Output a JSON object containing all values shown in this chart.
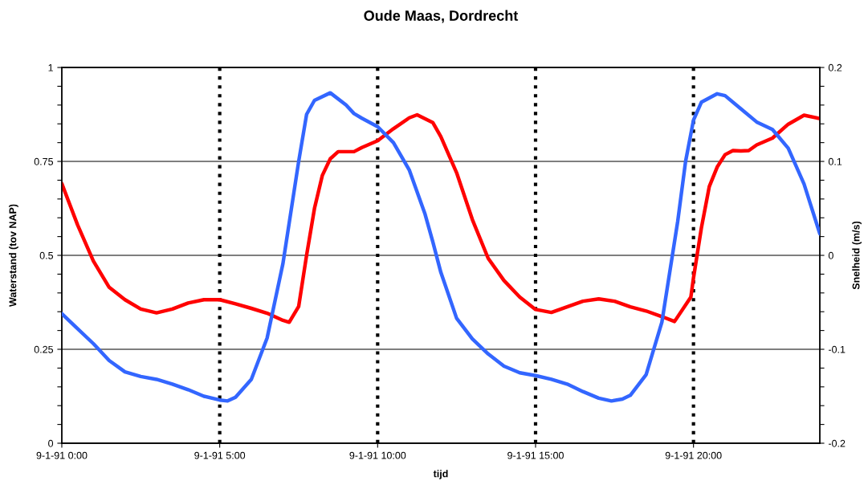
{
  "chart_data": {
    "type": "line",
    "title": "Oude Maas, Dordrecht",
    "xlabel": "tijd",
    "ylabel": "Waterstand (tov NAP)",
    "y2label": "Snelheid (m/s)",
    "xlim": [
      "1991-01-09T00:00",
      "1991-01-10T00:00"
    ],
    "xticks": [
      {
        "value": "1991-01-09T00:00",
        "label": "9-1-91 0:00"
      },
      {
        "value": "1991-01-09T05:00",
        "label": "9-1-91 5:00"
      },
      {
        "value": "1991-01-09T10:00",
        "label": "9-1-91 10:00"
      },
      {
        "value": "1991-01-09T15:00",
        "label": "9-1-91 15:00"
      },
      {
        "value": "1991-01-09T20:00",
        "label": "9-1-91 20:00"
      }
    ],
    "ylim": [
      0,
      1
    ],
    "yticks": [
      0,
      {
        "value": 0.05,
        "label": null
      },
      {
        "value": 0.1,
        "label": null
      },
      {
        "value": 0.15,
        "label": null
      },
      {
        "value": 0.2,
        "label": null
      },
      0.25,
      {
        "value": 0.3,
        "label": null
      },
      {
        "value": 0.35,
        "label": null
      },
      {
        "value": 0.4,
        "label": null
      },
      {
        "value": 0.45,
        "label": null
      },
      0.5,
      {
        "value": 0.55,
        "label": null
      },
      {
        "value": 0.6,
        "label": null
      },
      {
        "value": 0.65,
        "label": null
      },
      {
        "value": 0.7,
        "label": null
      },
      0.75,
      {
        "value": 0.8,
        "label": null
      },
      {
        "value": 0.85,
        "label": null
      },
      {
        "value": 0.9,
        "label": null
      },
      {
        "value": 0.95,
        "label": null
      },
      1
    ],
    "y2lim": [
      -0.2,
      0.2
    ],
    "y2ticks": [
      -0.2,
      {
        "value": -0.18,
        "label": null
      },
      {
        "value": -0.16,
        "label": null
      },
      {
        "value": -0.14,
        "label": null
      },
      {
        "value": -0.12,
        "label": null
      },
      -0.1,
      {
        "value": -0.08,
        "label": null
      },
      {
        "value": -0.06,
        "label": null
      },
      {
        "value": -0.04,
        "label": null
      },
      {
        "value": -0.02,
        "label": null
      },
      0,
      {
        "value": 0.02,
        "label": null
      },
      {
        "value": 0.04,
        "label": null
      },
      {
        "value": 0.06,
        "label": null
      },
      {
        "value": 0.08,
        "label": null
      },
      0.1,
      {
        "value": 0.12,
        "label": null
      },
      {
        "value": 0.14,
        "label": null
      },
      {
        "value": 0.16,
        "label": null
      },
      {
        "value": 0.18,
        "label": null
      },
      0.2
    ],
    "grid": "y",
    "line_style": "solid",
    "marker": "none",
    "ref_lines": [
      {
        "axis": "x",
        "value": "1991-01-09T05:00",
        "color": "#000000",
        "line_style": "dotted"
      },
      {
        "axis": "x",
        "value": "1991-01-09T10:00",
        "color": "#000000",
        "line_style": "dotted"
      },
      {
        "axis": "x",
        "value": "1991-01-09T15:00",
        "color": "#000000",
        "line_style": "dotted"
      },
      {
        "axis": "x",
        "value": "1991-01-09T20:00",
        "color": "#000000",
        "line_style": "dotted"
      }
    ],
    "series": [
      {
        "color": "#ff0000",
        "x": [
          "1991-01-09T00:00",
          "1991-01-09T00:30",
          "1991-01-09T01:00",
          "1991-01-09T01:30",
          "1991-01-09T02:00",
          "1991-01-09T02:30",
          "1991-01-09T03:00",
          "1991-01-09T03:30",
          "1991-01-09T04:00",
          "1991-01-09T04:30",
          "1991-01-09T05:00",
          "1991-01-09T05:30",
          "1991-01-09T06:00",
          "1991-01-09T06:30",
          "1991-01-09T07:00",
          "1991-01-09T07:12",
          "1991-01-09T07:30",
          "1991-01-09T07:45",
          "1991-01-09T08:00",
          "1991-01-09T08:15",
          "1991-01-09T08:30",
          "1991-01-09T08:45",
          "1991-01-09T09:00",
          "1991-01-09T09:15",
          "1991-01-09T09:30",
          "1991-01-09T10:00",
          "1991-01-09T10:30",
          "1991-01-09T11:00",
          "1991-01-09T11:15",
          "1991-01-09T11:45",
          "1991-01-09T12:00",
          "1991-01-09T12:30",
          "1991-01-09T13:00",
          "1991-01-09T13:30",
          "1991-01-09T14:00",
          "1991-01-09T14:30",
          "1991-01-09T15:00",
          "1991-01-09T15:30",
          "1991-01-09T16:00",
          "1991-01-09T16:30",
          "1991-01-09T17:00",
          "1991-01-09T17:30",
          "1991-01-09T18:00",
          "1991-01-09T18:30",
          "1991-01-09T19:00",
          "1991-01-09T19:24",
          "1991-01-09T19:55",
          "1991-01-09T20:00",
          "1991-01-09T20:15",
          "1991-01-09T20:30",
          "1991-01-09T20:45",
          "1991-01-09T21:00",
          "1991-01-09T21:15",
          "1991-01-09T21:30",
          "1991-01-09T21:45",
          "1991-01-09T22:00",
          "1991-01-09T22:30",
          "1991-01-09T23:00",
          "1991-01-09T23:30",
          "1991-01-10T00:00"
        ],
        "values": [
          0.691,
          0.581,
          0.485,
          0.415,
          0.382,
          0.357,
          0.347,
          0.357,
          0.373,
          0.382,
          0.382,
          0.371,
          0.359,
          0.346,
          0.327,
          0.322,
          0.364,
          0.5,
          0.625,
          0.713,
          0.757,
          0.776,
          0.776,
          0.776,
          0.787,
          0.805,
          0.837,
          0.866,
          0.874,
          0.853,
          0.816,
          0.72,
          0.595,
          0.492,
          0.433,
          0.389,
          0.356,
          0.348,
          0.363,
          0.378,
          0.384,
          0.378,
          0.363,
          0.352,
          0.337,
          0.324,
          0.389,
          0.44,
          0.573,
          0.683,
          0.735,
          0.768,
          0.779,
          0.778,
          0.779,
          0.794,
          0.812,
          0.849,
          0.873,
          0.864
        ]
      },
      {
        "color": "#3366ff",
        "axis": "y2",
        "x": [
          "1991-01-09T00:00",
          "1991-01-09T00:30",
          "1991-01-09T01:00",
          "1991-01-09T01:30",
          "1991-01-09T02:00",
          "1991-01-09T02:30",
          "1991-01-09T03:00",
          "1991-01-09T03:30",
          "1991-01-09T04:00",
          "1991-01-09T04:30",
          "1991-01-09T05:00",
          "1991-01-09T05:15",
          "1991-01-09T05:30",
          "1991-01-09T06:00",
          "1991-01-09T06:30",
          "1991-01-09T07:00",
          "1991-01-09T07:30",
          "1991-01-09T07:45",
          "1991-01-09T08:00",
          "1991-01-09T08:30",
          "1991-01-09T09:00",
          "1991-01-09T09:15",
          "1991-01-09T09:30",
          "1991-01-09T10:00",
          "1991-01-09T10:30",
          "1991-01-09T11:00",
          "1991-01-09T11:30",
          "1991-01-09T11:45",
          "1991-01-09T12:00",
          "1991-01-09T12:30",
          "1991-01-09T13:00",
          "1991-01-09T13:30",
          "1991-01-09T14:00",
          "1991-01-09T14:30",
          "1991-01-09T15:00",
          "1991-01-09T15:30",
          "1991-01-09T16:00",
          "1991-01-09T16:30",
          "1991-01-09T17:00",
          "1991-01-09T17:24",
          "1991-01-09T17:45",
          "1991-01-09T18:00",
          "1991-01-09T18:30",
          "1991-01-09T19:00",
          "1991-01-09T19:30",
          "1991-01-09T19:45",
          "1991-01-09T20:00",
          "1991-01-09T20:15",
          "1991-01-09T20:45",
          "1991-01-09T21:00",
          "1991-01-09T21:30",
          "1991-01-09T22:00",
          "1991-01-09T22:30",
          "1991-01-09T23:00",
          "1991-01-09T23:30",
          "1991-01-10T00:00"
        ],
        "values": [
          -0.062,
          -0.078,
          -0.094,
          -0.112,
          -0.124,
          -0.129,
          -0.132,
          -0.137,
          -0.143,
          -0.15,
          -0.154,
          -0.155,
          -0.151,
          -0.132,
          -0.088,
          -0.009,
          0.1,
          0.15,
          0.165,
          0.173,
          0.16,
          0.151,
          0.146,
          0.137,
          0.12,
          0.091,
          0.044,
          0.014,
          -0.018,
          -0.067,
          -0.089,
          -0.105,
          -0.118,
          -0.125,
          -0.128,
          -0.132,
          -0.137,
          -0.145,
          -0.152,
          -0.155,
          -0.153,
          -0.149,
          -0.127,
          -0.071,
          0.036,
          0.1,
          0.144,
          0.163,
          0.172,
          0.17,
          0.156,
          0.142,
          0.134,
          0.114,
          0.076,
          0.023
        ]
      }
    ]
  }
}
